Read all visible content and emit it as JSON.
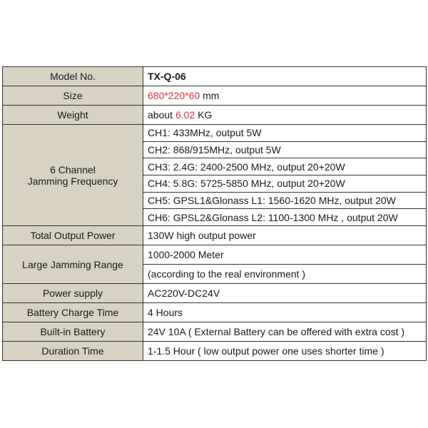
{
  "spec_table": {
    "model": {
      "label": "Model No.",
      "value": "TX-Q-06"
    },
    "size": {
      "label": "Size",
      "value_highlight": "680*220*60",
      "value_unit": " mm"
    },
    "weight": {
      "label": "Weight",
      "value_prefix": "about ",
      "value_highlight": "6.02",
      "value_unit": " KG"
    },
    "channels": {
      "label_line1": "6 Channel",
      "label_line2": "Jamming Frequency",
      "items": [
        "CH1: 433MHz, output 5W",
        "CH2: 868/915MHz, output 5W",
        "CH3: 2.4G: 2400-2500 MHz, output 20+20W",
        "CH4: 5.8G: 5725-5850 MHz, output 20+20W",
        "CH5: GPSL1&Glonass L1: 1560-1620 MHz, output 20W",
        "CH6: GPSL2&Glonass L2: 1100-1300 MHz , output 20W"
      ]
    },
    "total_output": {
      "label": "Total Output Power",
      "value": "130W high output power"
    },
    "range": {
      "label": "Large Jamming Range",
      "value1": "1000-2000 Meter",
      "value2": "(according to the real environment )"
    },
    "power_supply": {
      "label": "Power supply",
      "value": "AC220V-DC24V"
    },
    "charge_time": {
      "label": "Battery Charge Time",
      "value": "4 Hours"
    },
    "battery": {
      "label": "Built-in Battery",
      "value": "24V 10A ( External Battery can be offered with extra cost )"
    },
    "duration": {
      "label": "Duration Time",
      "value": "1-1.5 Hour ( low output power one uses shorter time )"
    }
  },
  "colors": {
    "label_bg": "#d8d2c2",
    "highlight": "#e0303a",
    "border": "#333333"
  }
}
